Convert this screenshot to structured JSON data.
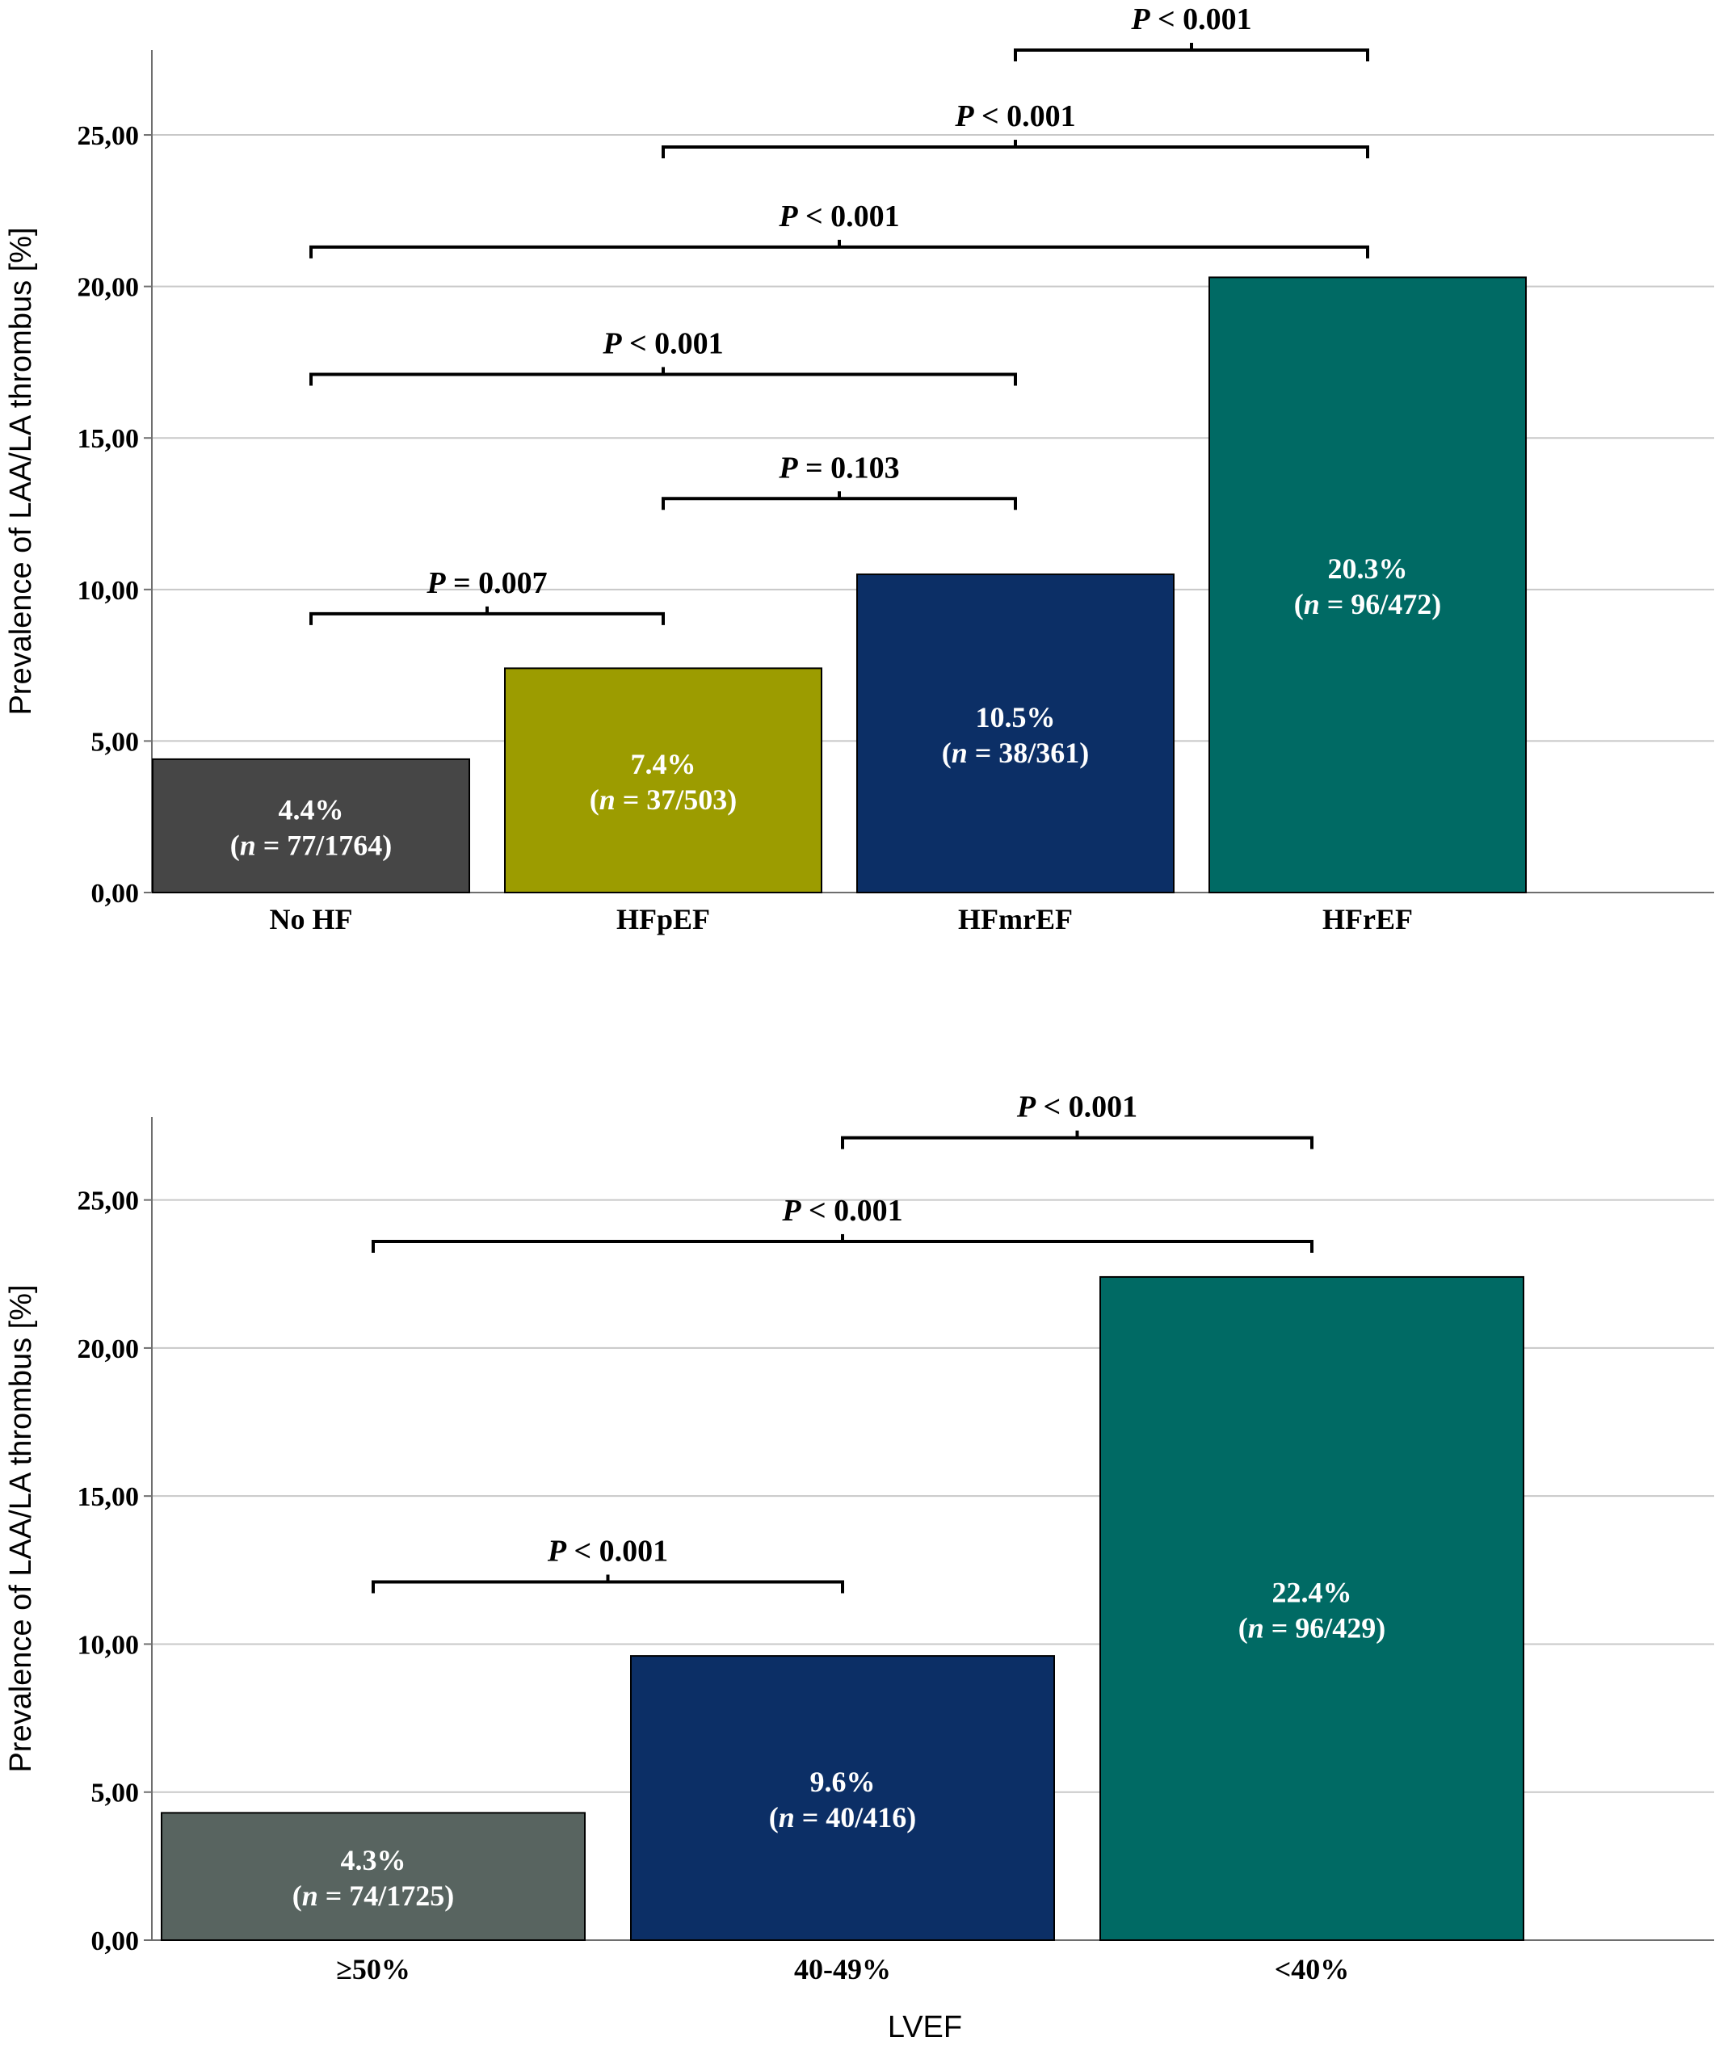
{
  "colors": {
    "grid": "#c8c8c8",
    "axis": "#6e6e6e",
    "bracket": "#000000",
    "bar_outline": "#000000",
    "bar_text": "#ffffff"
  },
  "chart_data": [
    {
      "type": "bar",
      "title": "",
      "xlabel": "",
      "ylabel": "Prevalence of LAA/LA thrombus [%]",
      "ylim": [
        0,
        27.8
      ],
      "grid": true,
      "yticks": [
        0,
        5,
        10,
        15,
        20,
        25
      ],
      "ytick_labels": [
        "0,00",
        "5,00",
        "10,00",
        "15,00",
        "20,00",
        "25,00"
      ],
      "categories": [
        "No HF",
        "HFpEF",
        "HFmrEF",
        "HFrEF"
      ],
      "values": [
        4.4,
        7.4,
        10.5,
        20.3
      ],
      "colors": [
        "#464646",
        "#9c9c00",
        "#0c2f66",
        "#006a64"
      ],
      "bar_labels": [
        {
          "pct": "4.4%",
          "n_prefix": "(",
          "n_letter": "n",
          "n_rest": " = 77/1764)"
        },
        {
          "pct": "7.4%",
          "n_prefix": "(",
          "n_letter": "n",
          "n_rest": " = 37/503)"
        },
        {
          "pct": "10.5%",
          "n_prefix": "(",
          "n_letter": "n",
          "n_rest": " = 38/361)"
        },
        {
          "pct": "20.3%",
          "n_prefix": "(",
          "n_letter": "n",
          "n_rest": " = 96/472)"
        }
      ],
      "comparisons": [
        {
          "from": 0,
          "to": 1,
          "level": 9.2,
          "p_letter": "P",
          "p_text": " = 0.007"
        },
        {
          "from": 1,
          "to": 2,
          "level": 13.0,
          "p_letter": "P",
          "p_text": " = 0.103"
        },
        {
          "from": 0,
          "to": 2,
          "level": 17.1,
          "p_letter": "P",
          "p_text": " < 0.001"
        },
        {
          "from": 0,
          "to": 3,
          "level": 21.3,
          "p_letter": "P",
          "p_text": " < 0.001"
        },
        {
          "from": 1,
          "to": 3,
          "level": 24.6,
          "p_letter": "P",
          "p_text": " < 0.001"
        },
        {
          "from": 2,
          "to": 3,
          "level": 27.8,
          "p_letter": "P",
          "p_text": " < 0.001"
        }
      ]
    },
    {
      "type": "bar",
      "title": "",
      "xlabel": "LVEF",
      "ylabel": "Prevalence of LAA/LA thrombus [%]",
      "ylim": [
        0,
        27.8
      ],
      "grid": true,
      "yticks": [
        0,
        5,
        10,
        15,
        20,
        25
      ],
      "ytick_labels": [
        "0,00",
        "5,00",
        "10,00",
        "15,00",
        "20,00",
        "25,00"
      ],
      "categories": [
        "≥50%",
        "40-49%",
        "<40%"
      ],
      "values": [
        4.3,
        9.6,
        22.4
      ],
      "colors": [
        "#586460",
        "#0c2f66",
        "#006a64"
      ],
      "bar_labels": [
        {
          "pct": "4.3%",
          "n_prefix": "(",
          "n_letter": "n",
          "n_rest": " =  74/1725)"
        },
        {
          "pct": "9.6%",
          "n_prefix": "(",
          "n_letter": "n",
          "n_rest": " =  40/416)"
        },
        {
          "pct": "22.4%",
          "n_prefix": "(",
          "n_letter": "n",
          "n_rest": " = 96/429)"
        }
      ],
      "comparisons": [
        {
          "from": 0,
          "to": 1,
          "level": 12.1,
          "p_letter": "P",
          "p_text": " < 0.001"
        },
        {
          "from": 0,
          "to": 2,
          "level": 23.6,
          "p_letter": "P",
          "p_text": " < 0.001"
        },
        {
          "from": 1,
          "to": 2,
          "level": 27.1,
          "p_letter": "P",
          "p_text": " < 0.001"
        }
      ]
    }
  ]
}
